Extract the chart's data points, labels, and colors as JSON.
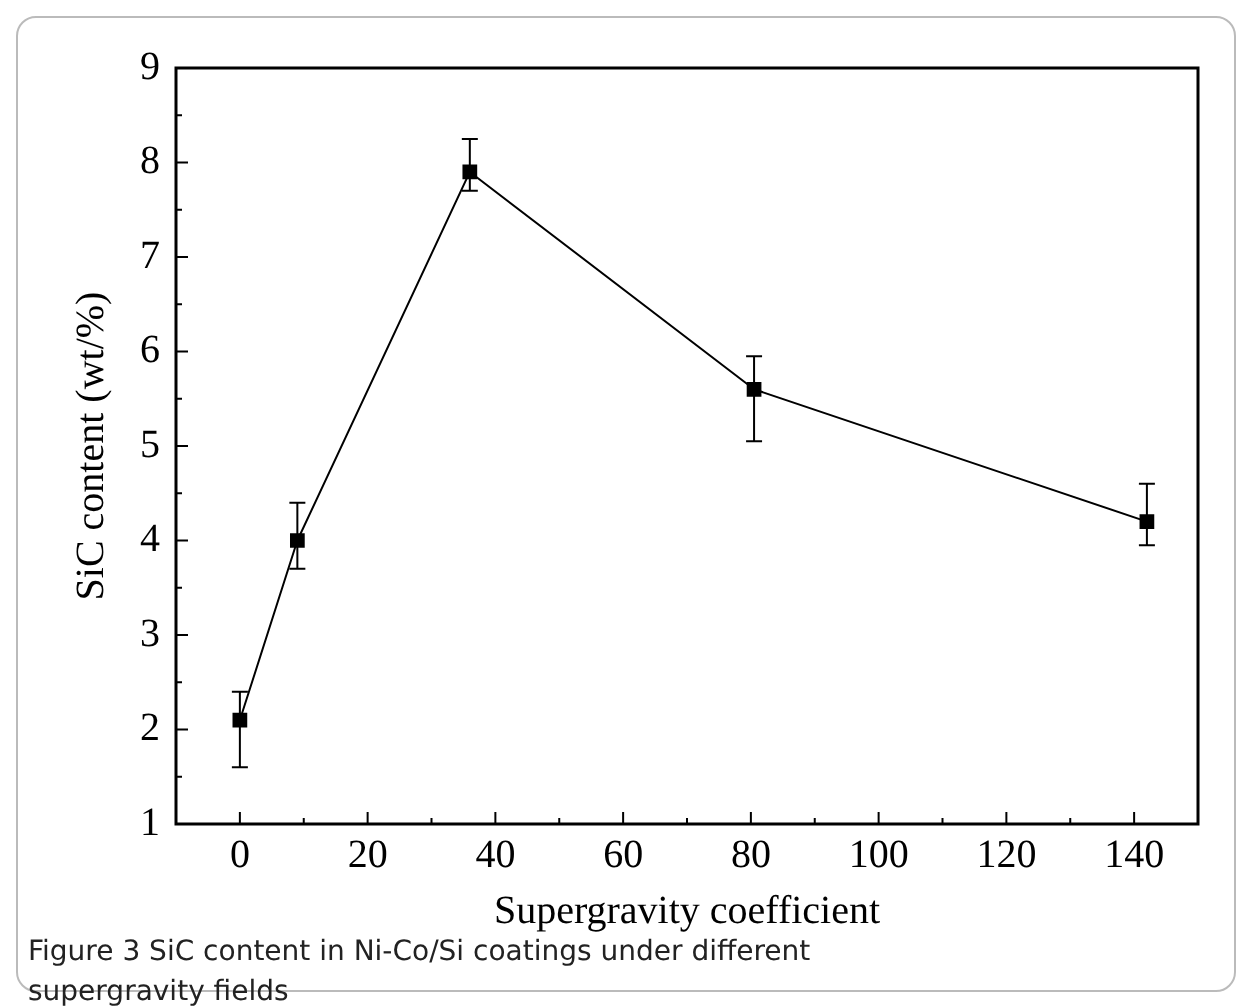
{
  "chart_data": {
    "type": "line",
    "xlabel": "Supergravity coefficient",
    "ylabel": "SiC content (wt/%)",
    "x": [
      0,
      9,
      36,
      80.5,
      142
    ],
    "series": [
      {
        "color": "#000000",
        "values": [
          2.1,
          4.0,
          7.9,
          5.6,
          4.2
        ],
        "errors": [
          [
            1.6,
            2.4
          ],
          [
            3.7,
            4.4
          ],
          [
            7.7,
            8.25
          ],
          [
            5.05,
            5.95
          ],
          [
            3.95,
            4.6
          ]
        ]
      }
    ],
    "xlim": [
      -10,
      150
    ],
    "xticks": [
      0,
      {
        "value": 10,
        "label": null
      },
      20,
      {
        "value": 30,
        "label": null
      },
      40,
      {
        "value": 50,
        "label": null
      },
      60,
      {
        "value": 70,
        "label": null
      },
      80,
      {
        "value": 90,
        "label": null
      },
      100,
      {
        "value": 110,
        "label": null
      },
      120,
      {
        "value": 130,
        "label": null
      },
      140
    ],
    "ylim": [
      1,
      9
    ],
    "yticks": [
      1,
      {
        "value": 1.5,
        "label": null
      },
      2,
      {
        "value": 2.5,
        "label": null
      },
      3,
      {
        "value": 3.5,
        "label": null
      },
      4,
      {
        "value": 4.5,
        "label": null
      },
      5,
      {
        "value": 5.5,
        "label": null
      },
      6,
      {
        "value": 6.5,
        "label": null
      },
      7,
      {
        "value": 7.5,
        "label": null
      },
      8,
      {
        "value": 8.5,
        "label": null
      },
      9
    ],
    "marker": "square",
    "line_style": "solid",
    "grid": false,
    "legend": false,
    "annotations": [
      "Figure 3  SiC content in Ni-Co/Si coatings under different supergravity fields"
    ]
  }
}
